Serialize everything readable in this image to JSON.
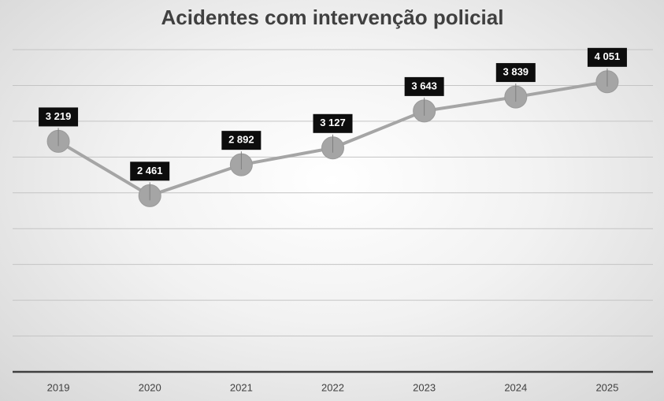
{
  "chart_data": {
    "type": "line",
    "title": "Acidentes com intervenção policial",
    "categories": [
      "2019",
      "2020",
      "2021",
      "2022",
      "2023",
      "2024",
      "2025"
    ],
    "series": [
      {
        "color": "#a5a5a5",
        "values": [
          3219,
          2461,
          2892,
          3127,
          3643,
          3839,
          4051
        ],
        "value_labels": [
          "3 219",
          "2 461",
          "2 892",
          "3 127",
          "3 643",
          "3 839",
          "4 051"
        ]
      }
    ],
    "ylim": [
      0,
      4500
    ],
    "yticks": [
      0,
      500,
      1000,
      1500,
      2000,
      2500,
      3000,
      3500,
      4000,
      4500
    ],
    "grid": true
  }
}
